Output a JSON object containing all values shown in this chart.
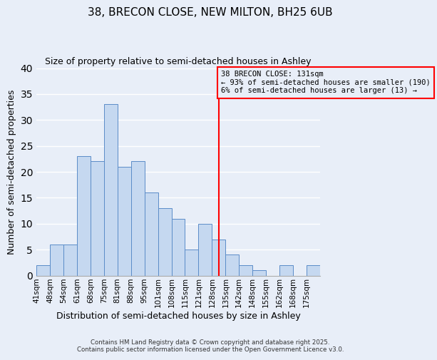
{
  "title": "38, BRECON CLOSE, NEW MILTON, BH25 6UB",
  "subtitle": "Size of property relative to semi-detached houses in Ashley",
  "xlabel": "Distribution of semi-detached houses by size in Ashley",
  "ylabel": "Number of semi-detached properties",
  "bin_labels": [
    "41sqm",
    "48sqm",
    "54sqm",
    "61sqm",
    "68sqm",
    "75sqm",
    "81sqm",
    "88sqm",
    "95sqm",
    "101sqm",
    "108sqm",
    "115sqm",
    "121sqm",
    "128sqm",
    "135sqm",
    "142sqm",
    "148sqm",
    "155sqm",
    "162sqm",
    "168sqm",
    "175sqm"
  ],
  "bar_heights": [
    2,
    6,
    6,
    23,
    22,
    33,
    21,
    22,
    16,
    13,
    11,
    5,
    10,
    7,
    4,
    2,
    1,
    0,
    2,
    0,
    2
  ],
  "bar_color": "#c5d8f0",
  "bar_edgecolor": "#5b8cc8",
  "property_line_x": 13.5,
  "property_line_color": "red",
  "annotation_text": "38 BRECON CLOSE: 131sqm\n← 93% of semi-detached houses are smaller (190)\n6% of semi-detached houses are larger (13) →",
  "annotation_box_edgecolor": "red",
  "annotation_box_facecolor": "#e8eef8",
  "ylim": [
    0,
    40
  ],
  "yticks": [
    0,
    5,
    10,
    15,
    20,
    25,
    30,
    35,
    40
  ],
  "background_color": "#e8eef8",
  "grid_color": "white",
  "footer_line1": "Contains HM Land Registry data © Crown copyright and database right 2025.",
  "footer_line2": "Contains public sector information licensed under the Open Government Licence v3.0.",
  "n_bars": 21
}
